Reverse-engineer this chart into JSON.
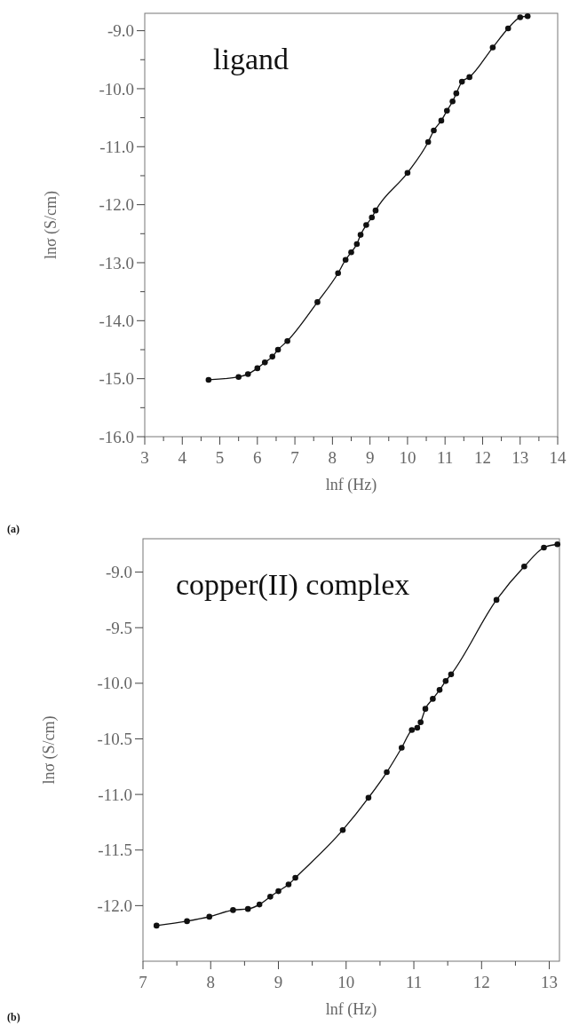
{
  "chart_data": [
    {
      "type": "line",
      "title": "ligand",
      "xlabel": "lnf (Hz)",
      "ylabel": "lnσ (S/cm)",
      "annotations": [
        "(a)"
      ],
      "marker": "circle",
      "line_style": "solid",
      "grid": false,
      "xlim": [
        3,
        14
      ],
      "xticks": [
        3,
        {
          "value": 3.5,
          "label": null
        },
        4,
        {
          "value": 4.5,
          "label": null
        },
        5,
        {
          "value": 5.5,
          "label": null
        },
        6,
        {
          "value": 6.5,
          "label": null
        },
        7,
        {
          "value": 7.5,
          "label": null
        },
        8,
        {
          "value": 8.5,
          "label": null
        },
        9,
        {
          "value": 9.5,
          "label": null
        },
        10,
        {
          "value": 10.5,
          "label": null
        },
        11,
        {
          "value": 11.5,
          "label": null
        },
        12,
        {
          "value": 12.5,
          "label": null
        },
        13,
        {
          "value": 13.5,
          "label": null
        },
        14
      ],
      "ylim": [
        -16,
        -8.7
      ],
      "yticks": [
        {
          "value": -16,
          "label": "-16.0"
        },
        {
          "value": -15.5,
          "label": null
        },
        {
          "value": -15,
          "label": "-15.0"
        },
        {
          "value": -14.5,
          "label": null
        },
        {
          "value": -14,
          "label": "-14.0"
        },
        {
          "value": -13.5,
          "label": null
        },
        {
          "value": -13,
          "label": "-13.0"
        },
        {
          "value": -12.5,
          "label": null
        },
        {
          "value": -12,
          "label": "-12.0"
        },
        {
          "value": -11.5,
          "label": null
        },
        {
          "value": -11,
          "label": "-11.0"
        },
        {
          "value": -10.5,
          "label": null
        },
        {
          "value": -10,
          "label": "-10.0"
        },
        {
          "value": -9.5,
          "label": null
        },
        {
          "value": -9,
          "label": "-9.0"
        }
      ],
      "series": [
        {
          "color": "#111111",
          "x": [
            4.7,
            5.5,
            5.75,
            6.0,
            6.2,
            6.4,
            6.55,
            6.8,
            7.6,
            8.15,
            8.35,
            8.5,
            8.65,
            8.75,
            8.9,
            9.05,
            9.15,
            10.0,
            10.55,
            10.7,
            10.9,
            11.05,
            11.2,
            11.3,
            11.45,
            11.65,
            12.27,
            12.68,
            13.0,
            13.2
          ],
          "values": [
            -15.02,
            -14.97,
            -14.92,
            -14.82,
            -14.72,
            -14.62,
            -14.5,
            -14.35,
            -13.68,
            -13.18,
            -12.95,
            -12.82,
            -12.68,
            -12.52,
            -12.35,
            -12.22,
            -12.1,
            -11.45,
            -10.92,
            -10.72,
            -10.55,
            -10.38,
            -10.22,
            -10.08,
            -9.88,
            -9.8,
            -9.29,
            -8.96,
            -8.77,
            -8.75
          ]
        }
      ]
    },
    {
      "type": "line",
      "title": "copper(II) complex",
      "xlabel": "lnf (Hz)",
      "ylabel": "lnσ (S/cm)",
      "annotations": [
        "(b)"
      ],
      "marker": "circle",
      "line_style": "solid",
      "grid": false,
      "xlim": [
        7,
        13.15
      ],
      "xticks": [
        7,
        {
          "value": 7.5,
          "label": null
        },
        8,
        {
          "value": 8.5,
          "label": null
        },
        9,
        {
          "value": 9.5,
          "label": null
        },
        10,
        {
          "value": 10.5,
          "label": null
        },
        11,
        {
          "value": 11.5,
          "label": null
        },
        12,
        {
          "value": 12.5,
          "label": null
        },
        13
      ],
      "ylim": [
        -12.5,
        -8.7
      ],
      "yticks": [
        {
          "value": -12,
          "label": "-12.0"
        },
        {
          "value": -11.5,
          "label": "-11.5"
        },
        {
          "value": -11,
          "label": "-11.0"
        },
        {
          "value": -10.5,
          "label": "-10.5"
        },
        {
          "value": -10,
          "label": "-10.0"
        },
        {
          "value": -9.5,
          "label": "-9.5"
        },
        {
          "value": -9,
          "label": "-9.0"
        }
      ],
      "series": [
        {
          "color": "#111111",
          "x": [
            7.2,
            7.65,
            7.98,
            8.33,
            8.55,
            8.72,
            8.88,
            9.0,
            9.15,
            9.25,
            9.95,
            10.33,
            10.6,
            10.82,
            10.97,
            11.05,
            11.1,
            11.17,
            11.28,
            11.38,
            11.47,
            11.55,
            12.22,
            12.63,
            12.92,
            13.12
          ],
          "values": [
            -12.18,
            -12.14,
            -12.1,
            -12.04,
            -12.03,
            -11.99,
            -11.92,
            -11.87,
            -11.81,
            -11.75,
            -11.32,
            -11.03,
            -10.8,
            -10.58,
            -10.42,
            -10.4,
            -10.35,
            -10.23,
            -10.14,
            -10.06,
            -9.98,
            -9.92,
            -9.25,
            -8.95,
            -8.78,
            -8.75
          ]
        }
      ]
    }
  ]
}
